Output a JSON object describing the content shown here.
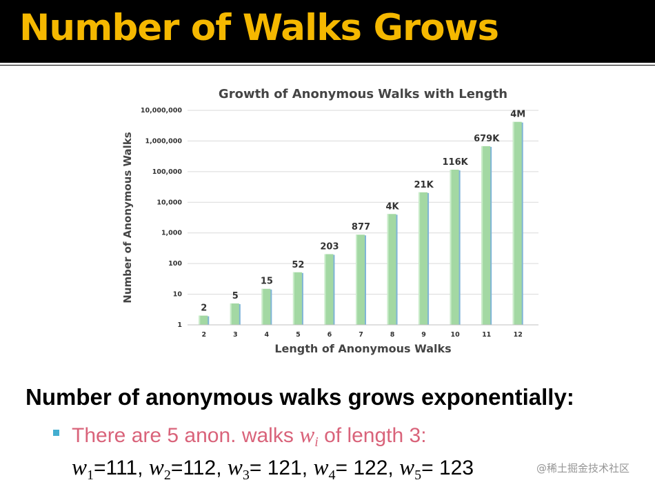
{
  "slide": {
    "title": "Number of Walks Grows",
    "heading": "Number of anonymous walks grows exponentially:",
    "bullet": {
      "before": "There are 5 anon. walks ",
      "var": "w",
      "sub": "i",
      "after": " of length 3:"
    },
    "walks": [
      {
        "var": "w",
        "sub": "1",
        "value": "=111"
      },
      {
        "var": "w",
        "sub": "2",
        "value": "=112"
      },
      {
        "var": "w",
        "sub": "3",
        "value": "= 121"
      },
      {
        "var": "w",
        "sub": "4",
        "value": "= 122"
      },
      {
        "var": "w",
        "sub": "5",
        "value": "= 123"
      }
    ],
    "watermark": "@稀土掘金技术社区"
  },
  "colors": {
    "title_bar": "#000000",
    "title_text": "#f5b800",
    "bar_fill": "#a3d8a3",
    "bar_shade": "#7fb4d6",
    "bullet_square": "#44aed0",
    "bullet_text": "#d9637a"
  },
  "chart_data": {
    "type": "bar",
    "title": "Growth of Anonymous Walks with Length",
    "xlabel": "Length of Anonymous Walks",
    "ylabel": "Number of Anonymous Walks",
    "yscale": "log",
    "ylim": [
      1,
      10000000
    ],
    "yticks": [
      {
        "value": 1,
        "label": "1"
      },
      {
        "value": 10,
        "label": "10"
      },
      {
        "value": 100,
        "label": "100"
      },
      {
        "value": 1000,
        "label": "1,000"
      },
      {
        "value": 10000,
        "label": "10,000"
      },
      {
        "value": 100000,
        "label": "100,000"
      },
      {
        "value": 1000000,
        "label": "1,000,000"
      },
      {
        "value": 10000000,
        "label": "10,000,000"
      }
    ],
    "categories": [
      "2",
      "3",
      "4",
      "5",
      "6",
      "7",
      "8",
      "9",
      "10",
      "11",
      "12"
    ],
    "values": [
      2,
      5,
      15,
      52,
      203,
      877,
      4140,
      21147,
      115975,
      678570,
      4213597
    ],
    "data_labels": [
      "2",
      "5",
      "15",
      "52",
      "203",
      "877",
      "4K",
      "21K",
      "116K",
      "679K",
      "4M"
    ],
    "grid": true,
    "legend": "none"
  }
}
